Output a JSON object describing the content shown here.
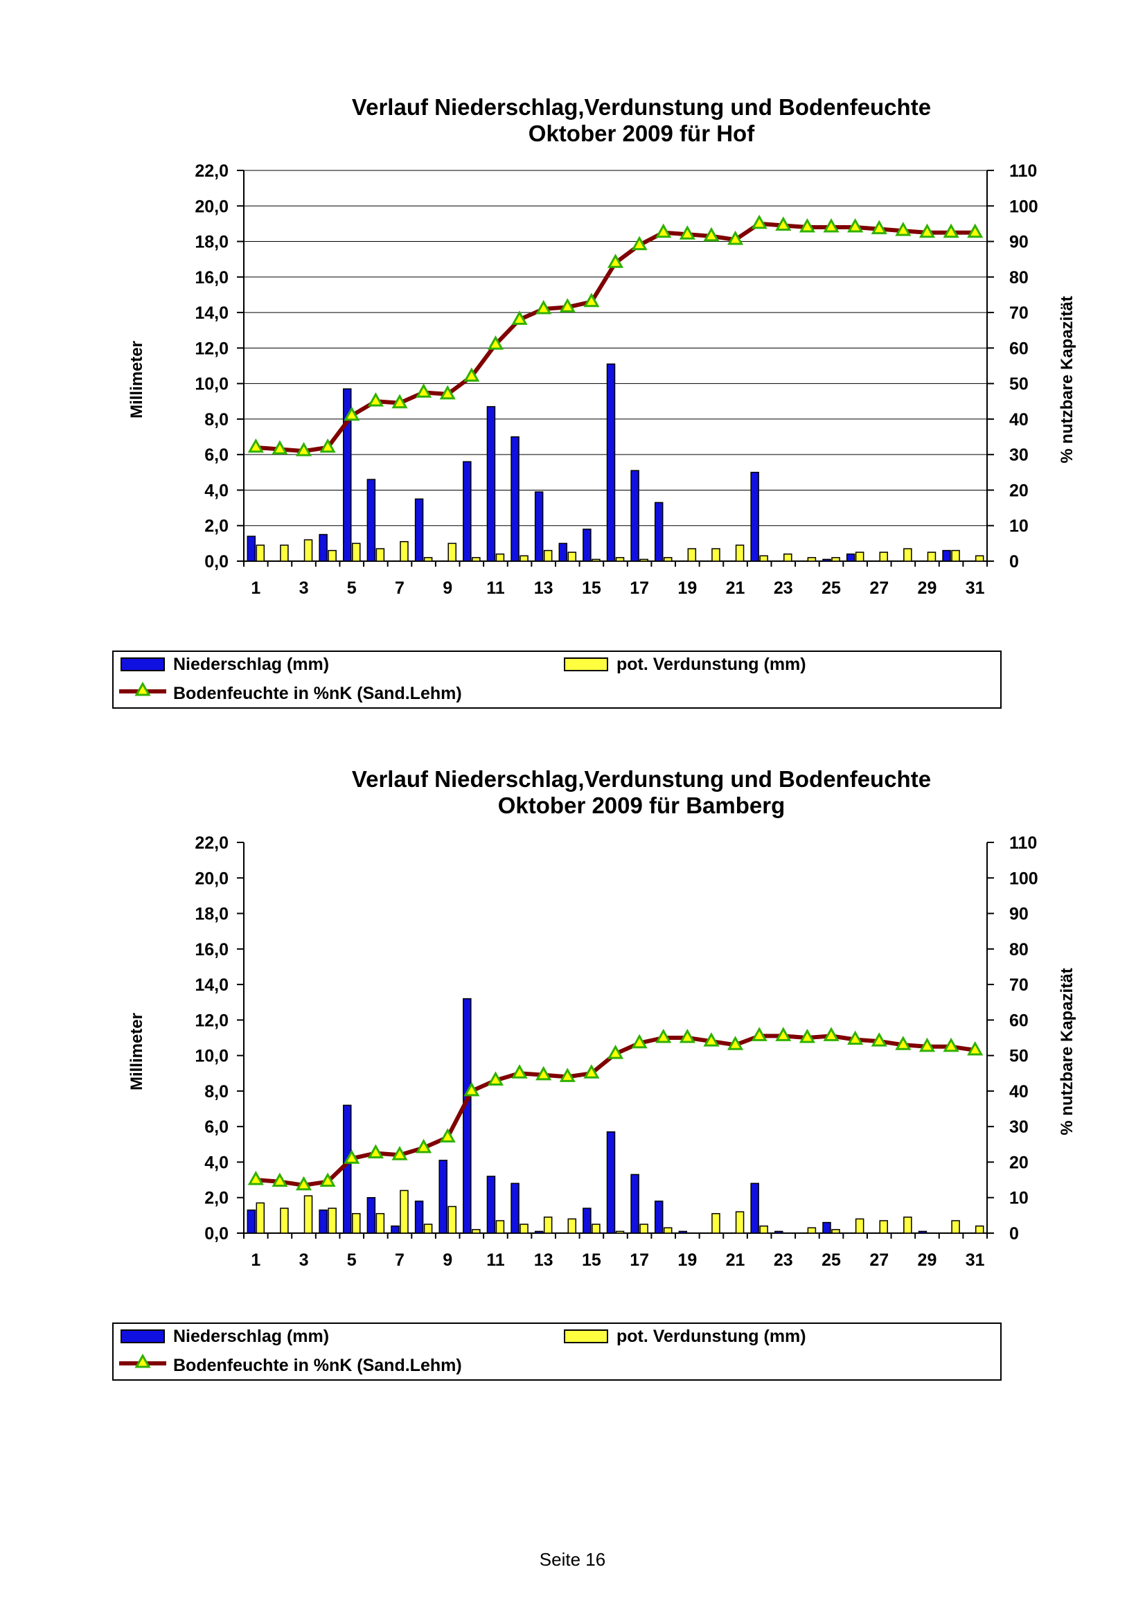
{
  "charts": [
    {
      "title_line1": "Verlauf Niederschlag,Verdunstung und Bodenfeuchte",
      "title_line2": "Oktober 2009 für Hof",
      "ylabel_left": "Millimeter",
      "ylabel_right": "% nutzbare Kapazität",
      "left_ticks": [
        "0,0",
        "2,0",
        "4,0",
        "6,0",
        "8,0",
        "10,0",
        "12,0",
        "14,0",
        "16,0",
        "18,0",
        "20,0",
        "22,0"
      ],
      "right_ticks": [
        "0",
        "10",
        "20",
        "30",
        "40",
        "50",
        "60",
        "70",
        "80",
        "90",
        "100",
        "110"
      ],
      "x_ticks": [
        "1",
        "3",
        "5",
        "7",
        "9",
        "11",
        "13",
        "15",
        "17",
        "19",
        "21",
        "23",
        "25",
        "27",
        "29",
        "31"
      ],
      "legend": {
        "niederschlag": "Niederschlag (mm)",
        "verdunstung": "pot. Verdunstung (mm)",
        "bodenfeuchte": "Bodenfeuchte in %nK (Sand.Lehm)"
      }
    },
    {
      "title_line1": "Verlauf Niederschlag,Verdunstung und Bodenfeuchte",
      "title_line2": "Oktober 2009 für Bamberg",
      "ylabel_left": "Millimeter",
      "ylabel_right": "% nutzbare Kapazität",
      "left_ticks": [
        "0,0",
        "2,0",
        "4,0",
        "6,0",
        "8,0",
        "10,0",
        "12,0",
        "14,0",
        "16,0",
        "18,0",
        "20,0",
        "22,0"
      ],
      "right_ticks": [
        "0",
        "10",
        "20",
        "30",
        "40",
        "50",
        "60",
        "70",
        "80",
        "90",
        "100",
        "110"
      ],
      "x_ticks": [
        "1",
        "3",
        "5",
        "7",
        "9",
        "11",
        "13",
        "15",
        "17",
        "19",
        "21",
        "23",
        "25",
        "27",
        "29",
        "31"
      ],
      "legend": {
        "niederschlag": "Niederschlag (mm)",
        "verdunstung": "pot. Verdunstung (mm)",
        "bodenfeuchte": "Bodenfeuchte in %nK (Sand.Lehm)"
      }
    }
  ],
  "chart_data": [
    {
      "type": "bar",
      "title": "Verlauf Niederschlag,Verdunstung und Bodenfeuchte Oktober 2009 für Hof",
      "xlabel": "",
      "ylabel": "Millimeter",
      "ylabel_right": "% nutzbare Kapazität",
      "x": [
        1,
        2,
        3,
        4,
        5,
        6,
        7,
        8,
        9,
        10,
        11,
        12,
        13,
        14,
        15,
        16,
        17,
        18,
        19,
        20,
        21,
        22,
        23,
        24,
        25,
        26,
        27,
        28,
        29,
        30,
        31
      ],
      "ylim": [
        0,
        22
      ],
      "ylim_right": [
        0,
        110
      ],
      "grid": true,
      "legend_position": "bottom",
      "colors": {
        "niederschlag": "#1010e0",
        "verdunstung": "#ffff40",
        "bodenfeuchte": "#800000",
        "marker": "#30b000"
      },
      "series": [
        {
          "name": "Niederschlag (mm)",
          "axis": "left",
          "type": "bar",
          "values": [
            1.4,
            0,
            0,
            1.5,
            9.7,
            4.6,
            0,
            3.5,
            0,
            5.6,
            8.7,
            7.0,
            3.9,
            1.0,
            1.8,
            11.1,
            5.1,
            3.3,
            0,
            0,
            0,
            5.0,
            0,
            0,
            0.1,
            0.4,
            0,
            0,
            0,
            0.6,
            0
          ]
        },
        {
          "name": "pot. Verdunstung (mm)",
          "axis": "left",
          "type": "bar",
          "values": [
            0.9,
            0.9,
            1.2,
            0.6,
            1.0,
            0.7,
            1.1,
            0.2,
            1.0,
            0.2,
            0.4,
            0.3,
            0.6,
            0.5,
            0.1,
            0.2,
            0.1,
            0.2,
            0.7,
            0.7,
            0.9,
            0.3,
            0.4,
            0.2,
            0.2,
            0.5,
            0.5,
            0.7,
            0.5,
            0.6,
            0.3
          ]
        },
        {
          "name": "Bodenfeuchte in %nK (Sand.Lehm)",
          "axis": "right",
          "type": "line",
          "values": [
            32,
            31.5,
            31,
            32,
            41,
            45,
            44.5,
            47.5,
            47,
            52,
            61,
            68,
            71,
            71.5,
            73,
            84,
            89,
            92.5,
            92,
            91.5,
            90.5,
            95,
            94.5,
            94,
            94,
            94,
            93.5,
            93,
            92.5,
            92.5,
            92.5
          ]
        }
      ]
    },
    {
      "type": "bar",
      "title": "Verlauf Niederschlag,Verdunstung und Bodenfeuchte Oktober 2009 für Bamberg",
      "xlabel": "",
      "ylabel": "Millimeter",
      "ylabel_right": "% nutzbare Kapazität",
      "x": [
        1,
        2,
        3,
        4,
        5,
        6,
        7,
        8,
        9,
        10,
        11,
        12,
        13,
        14,
        15,
        16,
        17,
        18,
        19,
        20,
        21,
        22,
        23,
        24,
        25,
        26,
        27,
        28,
        29,
        30,
        31
      ],
      "ylim": [
        0,
        22
      ],
      "ylim_right": [
        0,
        110
      ],
      "grid": false,
      "legend_position": "bottom",
      "colors": {
        "niederschlag": "#1010e0",
        "verdunstung": "#ffff40",
        "bodenfeuchte": "#800000",
        "marker": "#30b000"
      },
      "series": [
        {
          "name": "Niederschlag (mm)",
          "axis": "left",
          "type": "bar",
          "values": [
            1.3,
            0,
            0,
            1.3,
            7.2,
            2.0,
            0.4,
            1.8,
            4.1,
            13.2,
            3.2,
            2.8,
            0.1,
            0,
            1.4,
            5.7,
            3.3,
            1.8,
            0.1,
            0,
            0,
            2.8,
            0.1,
            0,
            0.6,
            0,
            0,
            0,
            0.1,
            0,
            0
          ]
        },
        {
          "name": "pot. Verdunstung (mm)",
          "axis": "left",
          "type": "bar",
          "values": [
            1.7,
            1.4,
            2.1,
            1.4,
            1.1,
            1.1,
            2.4,
            0.5,
            1.5,
            0.2,
            0.7,
            0.5,
            0.9,
            0.8,
            0.5,
            0.1,
            0.5,
            0.3,
            0,
            1.1,
            1.2,
            0.4,
            0,
            0.3,
            0.2,
            0.8,
            0.7,
            0.9,
            0,
            0.7,
            0.4
          ]
        },
        {
          "name": "Bodenfeuchte in %nK (Sand.Lehm)",
          "axis": "right",
          "type": "line",
          "values": [
            15,
            14.5,
            13.5,
            14.5,
            21,
            22.5,
            22,
            24,
            27,
            40,
            43,
            45,
            44.5,
            44,
            45,
            50.5,
            53.5,
            55,
            55,
            54,
            53,
            55.5,
            55.5,
            55,
            55.5,
            54.5,
            54,
            53,
            52.5,
            52.5,
            51.5
          ]
        }
      ]
    }
  ],
  "footer": "Seite 16"
}
